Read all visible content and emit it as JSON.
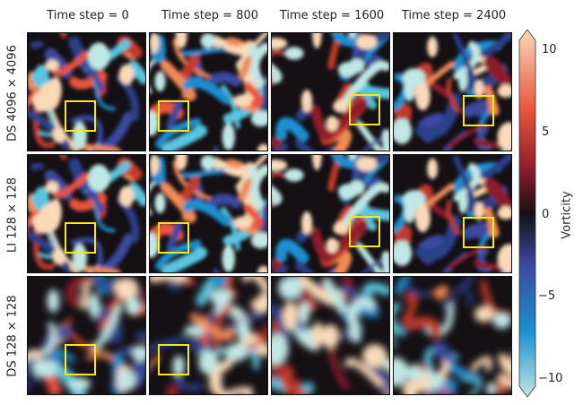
{
  "columns": [
    {
      "label": "Time step = 0"
    },
    {
      "label": "Time step = 800"
    },
    {
      "label": "Time step = 1600"
    },
    {
      "label": "Time step = 2400"
    }
  ],
  "rows": [
    {
      "label": "DS 4096 × 4096"
    },
    {
      "label": "LI 128 × 128"
    },
    {
      "label": "DS 128 × 128"
    }
  ],
  "colorbar": {
    "title": "Vorticity",
    "ticks": [
      "10",
      "5",
      "0",
      "−5",
      "−10"
    ],
    "colors": {
      "top": "#f9d9b7",
      "high": "#e8543a",
      "mid_high": "#8d1d2b",
      "zero": "#141014",
      "mid_low": "#3a4aa0",
      "low": "#1a8fd0",
      "bottom": "#bfe7e4"
    }
  },
  "highlight_color": "#f5e71b",
  "panels": [
    [
      {
        "box": true
      },
      {
        "box": true
      },
      {
        "box": true
      },
      {
        "box": true
      }
    ],
    [
      {
        "box": true
      },
      {
        "box": true
      },
      {
        "box": true
      },
      {
        "box": true
      }
    ],
    [
      {
        "box": true
      },
      {
        "box": true
      },
      {
        "box": false
      },
      {
        "box": false
      }
    ]
  ]
}
